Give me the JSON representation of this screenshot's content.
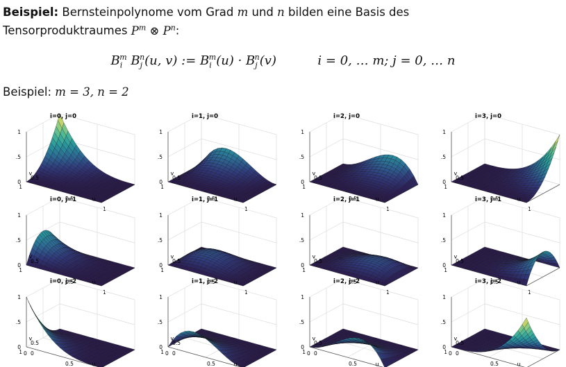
{
  "intro": {
    "bold": "Beispiel:",
    "part1": " Bernsteinpolynome vom Grad ",
    "m": "m",
    "part2": " und ",
    "n": "n",
    "part3": " bilden eine Basis des",
    "line2": "Tensorproduktraumes ",
    "space": "P^m ⊗ P^n",
    "colon": ":"
  },
  "formula": {
    "lhs": "B_i^m B_j^n(u,v) := B_i^m(u) · B_j^n(v)",
    "rhs": "i = 0, … m; j = 0, … n"
  },
  "example": {
    "label": "Beispiel: ",
    "values": "m = 3, n = 2"
  },
  "plot_ticks": {
    "z_top": "1",
    "z_mid": ".5",
    "z_bottom": "0",
    "u_mid": "0.5",
    "u_end": "1",
    "u_label": "u",
    "v_mid": "0.5",
    "v_end": "1",
    "v_label": "v",
    "origin_u": "0",
    "origin_v": "0"
  },
  "chart_data": {
    "type": "surface-grid",
    "m": 3,
    "n": 2,
    "rows": 3,
    "cols": 4,
    "zlim": [
      0,
      1
    ],
    "xlabel": "u",
    "ylabel": "v",
    "titles": [
      "i=0, j=0",
      "i=1, j=0",
      "i=2, j=0",
      "i=3, j=0",
      "i=0, j=1",
      "i=1, j=1",
      "i=2, j=1",
      "i=3, j=1",
      "i=0, j=2",
      "i=1, j=2",
      "i=2, j=2",
      "i=3, j=2"
    ],
    "colormap": [
      "#2b1a4d",
      "#303a7c",
      "#2c6b96",
      "#27959b",
      "#48b89a",
      "#9bd07e",
      "#e8d657"
    ]
  }
}
